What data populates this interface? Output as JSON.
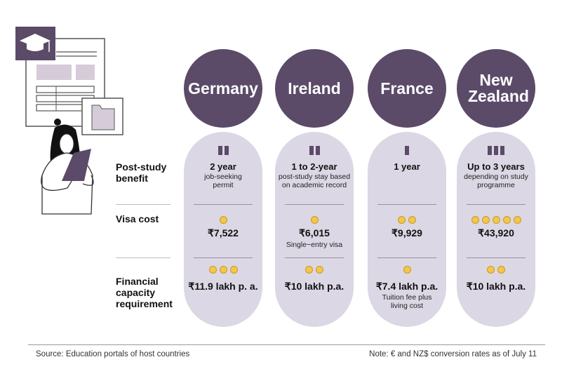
{
  "row_labels": {
    "benefit": "Post-study benefit",
    "visa": "Visa cost",
    "financial": "Financial capacity requirement"
  },
  "countries": [
    {
      "name": "Germany",
      "benefit_bars": 2,
      "benefit_main": "2 year",
      "benefit_sub": "job-seeking permit",
      "visa_dots": 1,
      "visa_cost": "₹7,522",
      "visa_sub": "",
      "fin_dots": 3,
      "fin_value": "₹11.9 lakh p. a.",
      "fin_sub": ""
    },
    {
      "name": "Ireland",
      "benefit_bars": 2,
      "benefit_main": "1  to  2-year",
      "benefit_sub": "post-study stay based on academic record",
      "visa_dots": 1,
      "visa_cost": "₹6,015",
      "visa_sub": "Single−entry visa",
      "fin_dots": 2,
      "fin_value": "₹10 lakh p.a.",
      "fin_sub": ""
    },
    {
      "name": "France",
      "benefit_bars": 1,
      "benefit_main": "1  year",
      "benefit_sub": "",
      "visa_dots": 2,
      "visa_cost": "₹9,929",
      "visa_sub": "",
      "fin_dots": 1,
      "fin_value": "₹7.4 lakh p.a.",
      "fin_sub": "Tuition fee plus living cost"
    },
    {
      "name": "New Zealand",
      "benefit_bars": 3,
      "benefit_main": "Up to  3  years",
      "benefit_sub": "depending on study programme",
      "visa_dots": 5,
      "visa_cost": "₹43,920",
      "visa_sub": "",
      "fin_dots": 2,
      "fin_value": "₹10 lakh p.a.",
      "fin_sub": ""
    }
  ],
  "footer": {
    "source": "Source: Education portals of host countries",
    "note": "Note: € and NZ$ conversion rates as of July 11"
  },
  "colors": {
    "accent": "#5b4a68",
    "pill": "#dcd7e4",
    "coin": "#f2c74c"
  }
}
